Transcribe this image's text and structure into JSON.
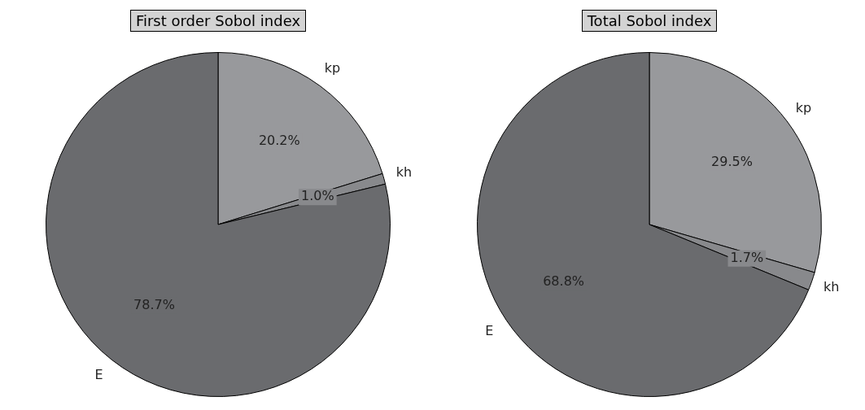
{
  "chart_data": [
    {
      "type": "pie",
      "title": "First order Sobol index",
      "categories": [
        "kp",
        "kh",
        "E"
      ],
      "values": [
        20.2,
        1.0,
        78.7
      ],
      "colors": [
        "#98999c",
        "#88898c",
        "#6a6b6e"
      ],
      "value_labels": [
        "20.2%",
        "1.0%",
        "78.7%"
      ],
      "legend": false
    },
    {
      "type": "pie",
      "title": "Total Sobol index",
      "categories": [
        "kp",
        "kh",
        "E"
      ],
      "values": [
        29.5,
        1.7,
        68.8
      ],
      "colors": [
        "#98999c",
        "#88898c",
        "#6a6b6e"
      ],
      "value_labels": [
        "29.5%",
        "1.7%",
        "68.8%"
      ],
      "legend": false
    }
  ]
}
